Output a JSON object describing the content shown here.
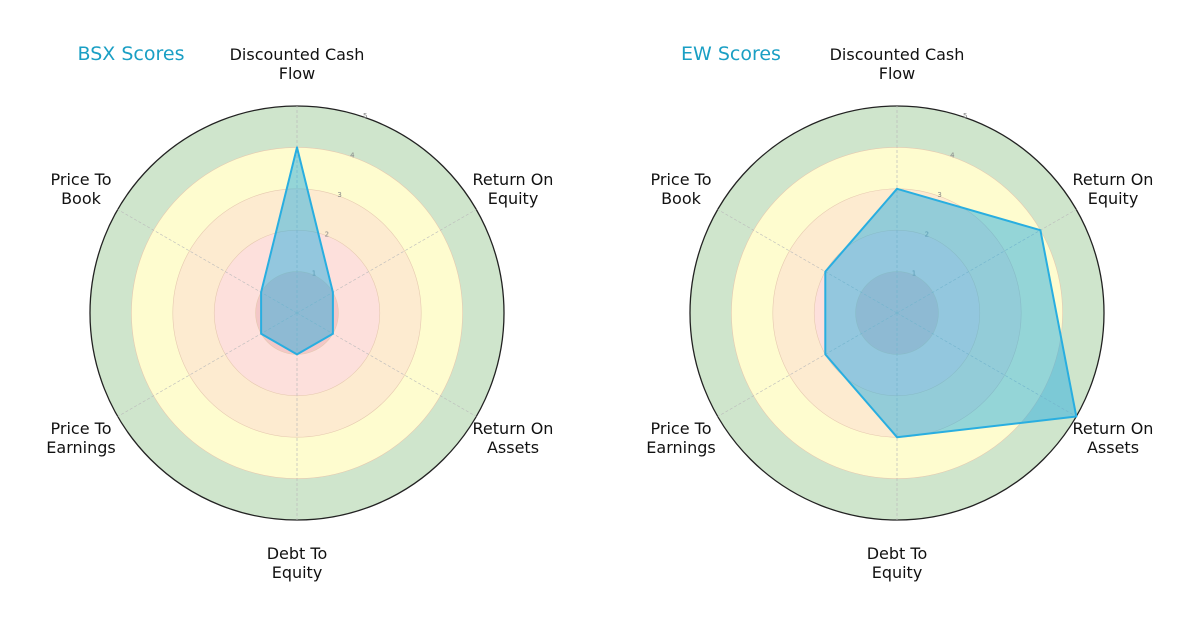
{
  "chart_data": [
    {
      "type": "radar",
      "title": "BSX Scores",
      "categories": [
        "Discounted Cash Flow",
        "Return On Equity",
        "Return On Assets",
        "Debt To Equity",
        "Price To Earnings",
        "Price To Book"
      ],
      "values": [
        4,
        1,
        1,
        1,
        1,
        1
      ],
      "rlim": [
        0,
        5
      ],
      "rticks": [
        1,
        2,
        3,
        4,
        5
      ],
      "bands": [
        {
          "from": 0,
          "to": 1,
          "color": "#f3c7c7"
        },
        {
          "from": 1,
          "to": 2,
          "color": "#fde0dc"
        },
        {
          "from": 2,
          "to": 3,
          "color": "#fdebd0"
        },
        {
          "from": 3,
          "to": 4,
          "color": "#fefccf"
        },
        {
          "from": 4,
          "to": 5,
          "color": "#cfe5cc"
        }
      ],
      "series_color": "#29aee0"
    },
    {
      "type": "radar",
      "title": "EW Scores",
      "categories": [
        "Discounted Cash Flow",
        "Return On Equity",
        "Return On Assets",
        "Debt To Equity",
        "Price To Earnings",
        "Price To Book"
      ],
      "values": [
        3,
        4,
        5,
        3,
        2,
        2
      ],
      "rlim": [
        0,
        5
      ],
      "rticks": [
        1,
        2,
        3,
        4,
        5
      ],
      "series_color": "#29aee0"
    }
  ],
  "charts": [
    {
      "title": "BSX Scores",
      "labels": [
        [
          "Discounted Cash",
          "Flow"
        ],
        [
          "Return On",
          "Equity"
        ],
        [
          "Return On",
          "Assets"
        ],
        [
          "Debt To",
          "Equity"
        ],
        [
          "Price To",
          "Earnings"
        ],
        [
          "Price To",
          "Book"
        ]
      ]
    },
    {
      "title": "EW Scores",
      "labels": [
        [
          "Discounted Cash",
          "Flow"
        ],
        [
          "Return On",
          "Equity"
        ],
        [
          "Return On",
          "Assets"
        ],
        [
          "Debt To",
          "Equity"
        ],
        [
          "Price To",
          "Earnings"
        ],
        [
          "Price To",
          "Book"
        ]
      ]
    }
  ]
}
